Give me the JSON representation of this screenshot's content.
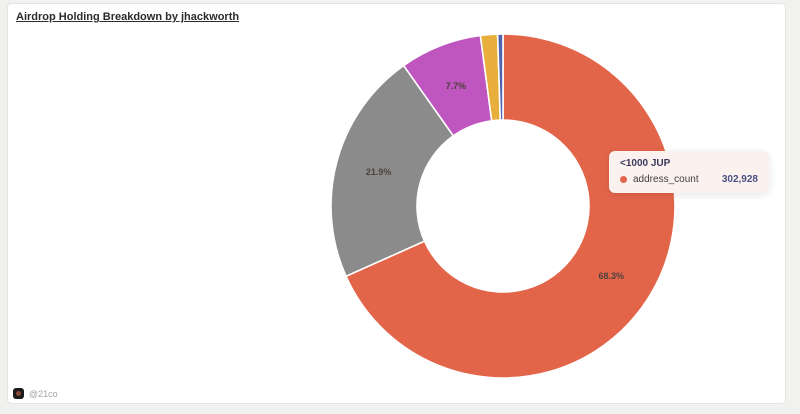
{
  "page": {
    "title": "Airdrop Holding Breakdown by jhackworth"
  },
  "chart_data": {
    "type": "pie",
    "variant": "donut",
    "title": "Airdrop Holding Breakdown by jhackworth",
    "series_name": "address_count",
    "legend_position": "none",
    "start_angle_deg": 0,
    "inner_radius_ratio": 0.5,
    "slices": [
      {
        "label": "<1000 JUP",
        "percent": 68.3,
        "percent_label": "68.3%",
        "color": "#E2654A",
        "value_display": "302,928"
      },
      {
        "label": "",
        "percent": 21.9,
        "percent_label": "21.9%",
        "color": "#8B8B8B"
      },
      {
        "label": "",
        "percent": 7.7,
        "percent_label": "7.7%",
        "color": "#BF55BE"
      },
      {
        "label": "",
        "percent": 1.6,
        "percent_label": "",
        "color": "#E7AE3B"
      },
      {
        "label": "",
        "percent": 0.5,
        "percent_label": "",
        "color": "#5061AE"
      }
    ]
  },
  "tooltip": {
    "title": "<1000 JUP",
    "series_label": "address_count",
    "value": "302,928",
    "dot_color": "#E2654A"
  },
  "footer": {
    "watermark": "@21co"
  }
}
